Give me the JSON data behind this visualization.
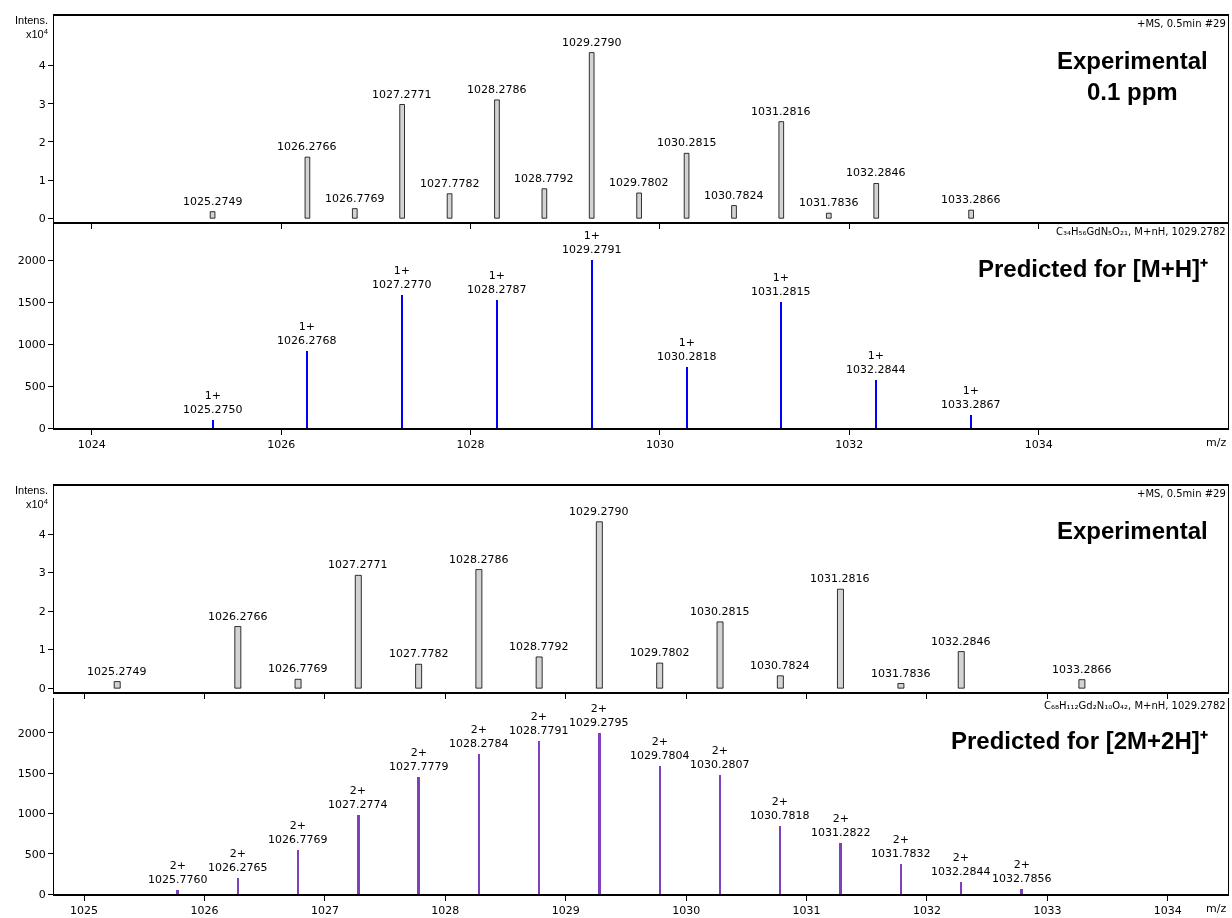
{
  "chart_data": [
    {
      "type": "bar",
      "title": "Experimental\n0.1 ppm",
      "ylabel": "Intens.\nx10$^{4}$",
      "annotations": [
        "+MS, 0.5min #29",
        {
          "text": "1025.2749",
          "x": 1025.2749,
          "y": 0.17
        },
        {
          "text": "1026.2766",
          "x": 1026.2766,
          "y": 1.6
        },
        {
          "text": "1026.7769",
          "x": 1026.7769,
          "y": 0.25
        },
        {
          "text": "1027.2771",
          "x": 1027.2771,
          "y": 2.98
        },
        {
          "text": "1027.7782",
          "x": 1027.7782,
          "y": 0.64
        },
        {
          "text": "1028.2786",
          "x": 1028.2786,
          "y": 3.1
        },
        {
          "text": "1028.7792",
          "x": 1028.7792,
          "y": 0.77
        },
        {
          "text": "1029.2790",
          "x": 1029.279,
          "y": 4.34
        },
        {
          "text": "1029.7802",
          "x": 1029.7802,
          "y": 0.66
        },
        {
          "text": "1030.2815",
          "x": 1030.2815,
          "y": 1.7
        },
        {
          "text": "1030.7824",
          "x": 1030.7824,
          "y": 0.33
        },
        {
          "text": "1031.2816",
          "x": 1031.2816,
          "y": 2.53
        },
        {
          "text": "1031.7836",
          "x": 1031.7836,
          "y": 0.13
        },
        {
          "text": "1032.2846",
          "x": 1032.2846,
          "y": 0.91
        },
        {
          "text": "1033.2866",
          "x": 1033.2866,
          "y": 0.21
        }
      ],
      "x": [
        1025.2749,
        1026.2766,
        1026.7769,
        1027.2771,
        1027.7782,
        1028.2786,
        1028.7792,
        1029.279,
        1029.7802,
        1030.2815,
        1030.7824,
        1031.2816,
        1031.7836,
        1032.2846,
        1033.2866
      ],
      "series": [
        {
          "color": "#d3d3d3",
          "values": [
            0.17,
            1.6,
            0.25,
            2.98,
            0.64,
            3.1,
            0.77,
            4.34,
            0.66,
            1.7,
            0.33,
            2.53,
            0.13,
            0.91,
            0.21
          ]
        }
      ],
      "xlim": [
        1023.6,
        1036.0
      ],
      "xticks": [
        1024,
        1026,
        1028,
        1030,
        1032,
        1034
      ],
      "ylim": [
        -0.1,
        5.3
      ],
      "yticks": [
        0,
        1,
        2,
        3,
        4
      ],
      "tick_labels": "y",
      "grid": false
    },
    {
      "type": "bar",
      "title": "Predicted for [M+H]⁺",
      "xlabel": "m/z",
      "annotations": [
        "C₃₄H₅₆GdN₅O₂₁, M+nH, 1029.2782",
        {
          "text": "1+\n1025.2750",
          "x": 1025.275,
          "y": 100
        },
        {
          "text": "1+\n1026.2768",
          "x": 1026.2768,
          "y": 920
        },
        {
          "text": "1+\n1027.2770",
          "x": 1027.277,
          "y": 1590
        },
        {
          "text": "1+\n1028.2787",
          "x": 1028.2787,
          "y": 1530
        },
        {
          "text": "1+\n1029.2791",
          "x": 1029.2791,
          "y": 2000
        },
        {
          "text": "1+\n1030.2818",
          "x": 1030.2818,
          "y": 730
        },
        {
          "text": "1+\n1031.2815",
          "x": 1031.2815,
          "y": 1500
        },
        {
          "text": "1+\n1032.2844",
          "x": 1032.2844,
          "y": 570
        },
        {
          "text": "1+\n1033.2867",
          "x": 1033.2867,
          "y": 150
        }
      ],
      "x": [
        1025.275,
        1026.2768,
        1027.277,
        1028.2787,
        1029.2791,
        1030.2818,
        1031.2815,
        1032.2844,
        1033.2867
      ],
      "series": [
        {
          "color": "#0000ff",
          "values": [
            100,
            920,
            1590,
            1530,
            2000,
            730,
            1500,
            570,
            150
          ]
        }
      ],
      "xlim": [
        1023.6,
        1036.0
      ],
      "xticks": [
        1024,
        1026,
        1028,
        1030,
        1032,
        1034
      ],
      "ylim": [
        0,
        2430
      ],
      "yticks": [
        0,
        500,
        1000,
        1500,
        2000
      ],
      "grid": false
    },
    {
      "type": "bar",
      "title": "Experimental",
      "ylabel": "Intens.\nx10$^{4}$",
      "annotations": [
        "+MS, 0.5min #29",
        {
          "text": "1025.2749",
          "x": 1025.2749,
          "y": 0.17
        },
        {
          "text": "1026.2766",
          "x": 1026.2766,
          "y": 1.6
        },
        {
          "text": "1026.7769",
          "x": 1026.7769,
          "y": 0.23
        },
        {
          "text": "1027.2771",
          "x": 1027.2771,
          "y": 2.93
        },
        {
          "text": "1027.7782",
          "x": 1027.7782,
          "y": 0.62
        },
        {
          "text": "1028.2786",
          "x": 1028.2786,
          "y": 3.08
        },
        {
          "text": "1028.7792",
          "x": 1028.7792,
          "y": 0.81
        },
        {
          "text": "1029.2790",
          "x": 1029.279,
          "y": 4.32
        },
        {
          "text": "1029.7802",
          "x": 1029.7802,
          "y": 0.65
        },
        {
          "text": "1030.2815",
          "x": 1030.2815,
          "y": 1.72
        },
        {
          "text": "1030.7824",
          "x": 1030.7824,
          "y": 0.32
        },
        {
          "text": "1031.2816",
          "x": 1031.2816,
          "y": 2.57
        },
        {
          "text": "1031.7836",
          "x": 1031.7836,
          "y": 0.12
        },
        {
          "text": "1032.2846",
          "x": 1032.2846,
          "y": 0.95
        },
        {
          "text": "1033.2866",
          "x": 1033.2866,
          "y": 0.22
        }
      ],
      "x": [
        1025.2749,
        1026.2766,
        1026.7769,
        1027.2771,
        1027.7782,
        1028.2786,
        1028.7792,
        1029.279,
        1029.7802,
        1030.2815,
        1030.7824,
        1031.2816,
        1031.7836,
        1032.2846,
        1033.2866
      ],
      "series": [
        {
          "color": "#d3d3d3",
          "values": [
            0.17,
            1.6,
            0.23,
            2.93,
            0.62,
            3.08,
            0.81,
            4.32,
            0.65,
            1.72,
            0.32,
            2.57,
            0.12,
            0.95,
            0.22
          ]
        }
      ],
      "xlim": [
        1024.75,
        1034.5
      ],
      "xticks": [
        1025,
        1026,
        1027,
        1028,
        1029,
        1030,
        1031,
        1032,
        1033,
        1034
      ],
      "ylim": [
        -0.1,
        5.25
      ],
      "yticks": [
        0,
        1,
        2,
        3,
        4
      ],
      "tick_labels": "y",
      "grid": false
    },
    {
      "type": "bar",
      "title": "Predicted for [2M+2H]⁺",
      "xlabel": "m/z",
      "annotations": [
        "C₆₈H₁₁₂Gd₂N₁₀O₄₂, M+nH, 1029.2782",
        {
          "text": "2+\n1025.7760",
          "x": 1025.776,
          "y": 50
        },
        {
          "text": "2+\n1026.2765",
          "x": 1026.2765,
          "y": 200
        },
        {
          "text": "2+\n1026.7769",
          "x": 1026.7769,
          "y": 550
        },
        {
          "text": "2+\n1027.2774",
          "x": 1027.2774,
          "y": 980
        },
        {
          "text": "2+\n1027.7779",
          "x": 1027.7779,
          "y": 1450
        },
        {
          "text": "2+\n1028.2784",
          "x": 1028.2784,
          "y": 1740
        },
        {
          "text": "2+\n1028.7791",
          "x": 1028.7791,
          "y": 1900
        },
        {
          "text": "2+\n1029.2795",
          "x": 1029.2795,
          "y": 2000
        },
        {
          "text": "2+\n1029.7804",
          "x": 1029.7804,
          "y": 1590
        },
        {
          "text": "2+\n1030.2807",
          "x": 1030.2807,
          "y": 1480
        },
        {
          "text": "2+\n1030.7818",
          "x": 1030.7818,
          "y": 840
        },
        {
          "text": "2+\n1031.2822",
          "x": 1031.2822,
          "y": 630
        },
        {
          "text": "2+\n1031.7832",
          "x": 1031.7832,
          "y": 370
        },
        {
          "text": "2+\n1032.2844",
          "x": 1032.2844,
          "y": 150
        },
        {
          "text": "2+\n1032.7856",
          "x": 1032.7856,
          "y": 60
        }
      ],
      "x": [
        1025.776,
        1026.2765,
        1026.7769,
        1027.2774,
        1027.7779,
        1028.2784,
        1028.7791,
        1029.2795,
        1029.7804,
        1030.2807,
        1030.7818,
        1031.2822,
        1031.7832,
        1032.2844,
        1032.7856
      ],
      "series": [
        {
          "color": "#7f3fbf",
          "values": [
            50,
            200,
            550,
            980,
            1450,
            1740,
            1900,
            2000,
            1590,
            1480,
            840,
            630,
            370,
            150,
            60
          ]
        }
      ],
      "xlim": [
        1024.75,
        1034.5
      ],
      "xticks": [
        1025,
        1026,
        1027,
        1028,
        1029,
        1030,
        1031,
        1032,
        1033,
        1034
      ],
      "ylim": [
        0,
        2430
      ],
      "yticks": [
        0,
        500,
        1000,
        1500,
        2000
      ],
      "grid": false
    }
  ]
}
